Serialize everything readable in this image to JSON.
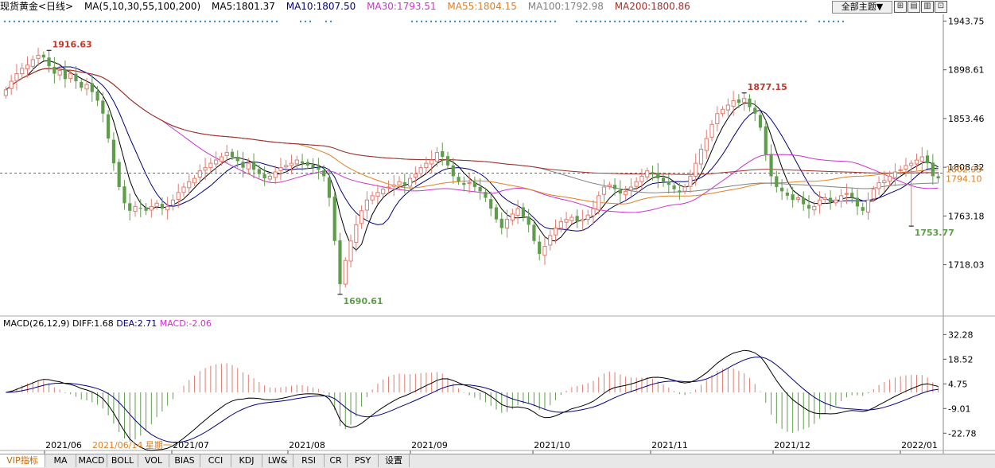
{
  "toolbar": {
    "symbol": "现货黄金<日线>",
    "ma_label": "MA(5,10,30,55,100,200)",
    "ma5": "MA5:1801.37",
    "ma10": "MA10:1807.50",
    "ma30": "MA30:1793.51",
    "ma55": "MA55:1804.15",
    "ma100": "MA100:1792.98",
    "ma200": "MA200:1800.86",
    "theme_button": "全部主题▼"
  },
  "colors": {
    "up": "#e07b6f",
    "down": "#5e9e4a",
    "ma5": "#000000",
    "ma10": "#000080",
    "ma30": "#cc33cc",
    "ma55": "#e08020",
    "ma100": "#808080",
    "ma200": "#a0302a",
    "annot_high": "#c0392b",
    "annot_low": "#5e9e4a"
  },
  "bottom_tabs": [
    "VIP指标",
    "MA",
    "MACD",
    "BOLL",
    "VOL",
    "BIAS",
    "CCI",
    "KDJ",
    "LW&",
    "RSI",
    "CR",
    "PSY",
    "设置"
  ],
  "chart_data": [
    {
      "type": "candlestick",
      "title": "现货黄金<日线>",
      "x_ticks": [
        "2021/06",
        "2021/07",
        "2021/08",
        "2021/09",
        "2021/10",
        "2021/11",
        "2021/12",
        "2022/01"
      ],
      "cursor_date": "2021/06/14 星期一",
      "y_ticks": [
        1943.75,
        1898.61,
        1853.46,
        1808.32,
        1763.18,
        1718.03
      ],
      "ylim": [
        1672,
        1950
      ],
      "last_price_tag": "1802.93",
      "secondary_price_tag": "1794.10",
      "annotations": [
        {
          "label": "1916.63",
          "value": 1916.63,
          "kind": "high"
        },
        {
          "label": "1690.61",
          "value": 1690.61,
          "kind": "low"
        },
        {
          "label": "1877.15",
          "value": 1877.15,
          "kind": "high"
        },
        {
          "label": "1753.77",
          "value": 1753.77,
          "kind": "low"
        }
      ],
      "close_path": [
        1880,
        1888,
        1895,
        1900,
        1903,
        1908,
        1912,
        1910,
        1902,
        1895,
        1898,
        1890,
        1895,
        1888,
        1882,
        1885,
        1878,
        1870,
        1858,
        1835,
        1812,
        1790,
        1775,
        1768,
        1772,
        1770,
        1768,
        1772,
        1775,
        1770,
        1772,
        1778,
        1785,
        1790,
        1795,
        1798,
        1805,
        1808,
        1812,
        1815,
        1818,
        1822,
        1818,
        1814,
        1808,
        1812,
        1806,
        1802,
        1798,
        1800,
        1804,
        1808,
        1810,
        1812,
        1815,
        1812,
        1810,
        1808,
        1806,
        1800,
        1780,
        1740,
        1700,
        1722,
        1740,
        1755,
        1768,
        1778,
        1782,
        1785,
        1788,
        1790,
        1792,
        1795,
        1792,
        1798,
        1802,
        1808,
        1812,
        1815,
        1822,
        1818,
        1810,
        1800,
        1795,
        1792,
        1794,
        1790,
        1786,
        1780,
        1770,
        1760,
        1752,
        1760,
        1765,
        1770,
        1762,
        1755,
        1740,
        1728,
        1735,
        1745,
        1752,
        1758,
        1760,
        1762,
        1758,
        1760,
        1764,
        1770,
        1782,
        1790,
        1792,
        1788,
        1784,
        1786,
        1790,
        1795,
        1800,
        1805,
        1802,
        1798,
        1795,
        1792,
        1788,
        1785,
        1790,
        1800,
        1812,
        1825,
        1835,
        1848,
        1858,
        1862,
        1866,
        1870,
        1868,
        1872,
        1864,
        1858,
        1845,
        1820,
        1800,
        1790,
        1786,
        1782,
        1778,
        1780,
        1774,
        1770,
        1772,
        1778,
        1780,
        1776,
        1778,
        1782,
        1784,
        1780,
        1772,
        1768,
        1778,
        1788,
        1794,
        1796,
        1800,
        1804,
        1806,
        1810,
        1812,
        1815,
        1818,
        1812,
        1800,
        1798
      ],
      "series": [
        {
          "name": "MA5",
          "value": 1801.37
        },
        {
          "name": "MA10",
          "value": 1807.5
        },
        {
          "name": "MA30",
          "value": 1793.51
        },
        {
          "name": "MA55",
          "value": 1804.15
        },
        {
          "name": "MA100",
          "value": 1792.98
        },
        {
          "name": "MA200",
          "value": 1800.86
        }
      ]
    },
    {
      "type": "bar",
      "title": "MACD(26,12,9)",
      "diff": "DIFF:1.68",
      "dea": "DEA:2.71",
      "macd": "MACD:-2.06",
      "y_ticks": [
        32.28,
        18.52,
        4.75,
        -9.01,
        -22.78
      ],
      "ylim": [
        -32,
        36
      ]
    }
  ]
}
